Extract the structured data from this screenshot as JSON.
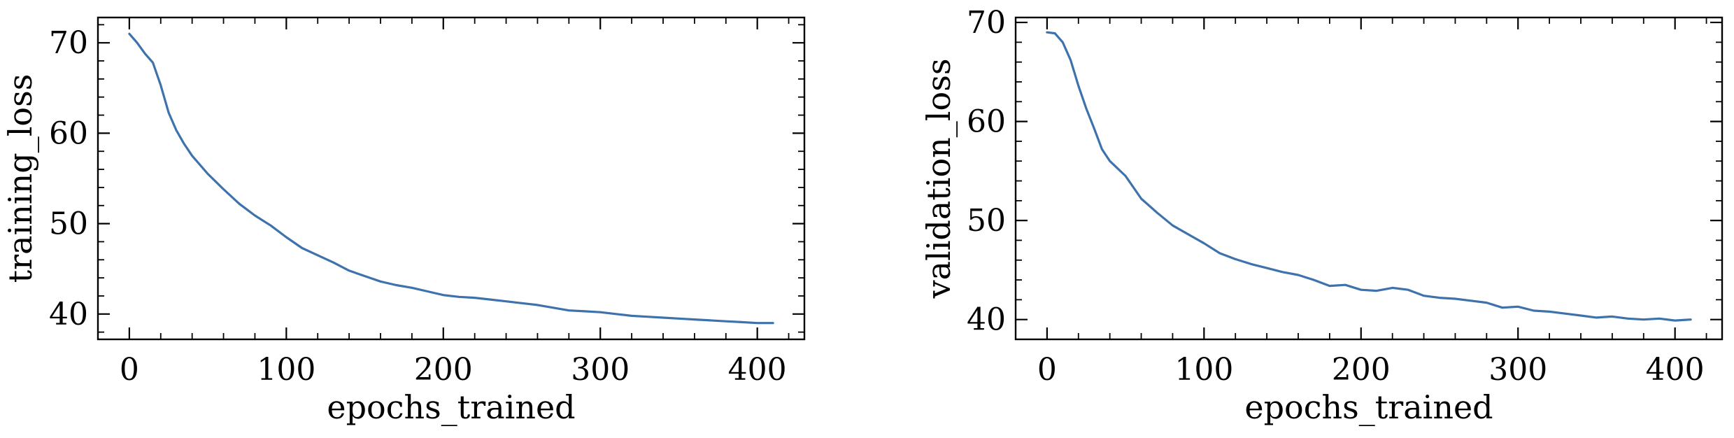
{
  "chart_data": [
    {
      "type": "line",
      "title": "",
      "xlabel": "epochs_trained",
      "ylabel": "training_loss",
      "xlim": [
        -20,
        430
      ],
      "ylim": [
        37.2,
        72.8
      ],
      "xticks": [
        0,
        100,
        200,
        300,
        400
      ],
      "yticks": [
        40,
        50,
        60,
        70
      ],
      "grid": false,
      "line_color": "#3e72ac",
      "series": [
        {
          "x": [
            0,
            5,
            10,
            15,
            20,
            25,
            30,
            35,
            40,
            50,
            60,
            70,
            80,
            90,
            100,
            110,
            120,
            130,
            140,
            150,
            160,
            170,
            180,
            190,
            200,
            210,
            220,
            230,
            240,
            250,
            260,
            270,
            280,
            290,
            300,
            310,
            320,
            330,
            340,
            350,
            360,
            370,
            380,
            390,
            400,
            410
          ],
          "y": [
            71.0,
            70.0,
            68.8,
            67.8,
            65.3,
            62.3,
            60.3,
            58.8,
            57.5,
            55.5,
            53.8,
            52.2,
            50.9,
            49.8,
            48.5,
            47.3,
            46.5,
            45.7,
            44.8,
            44.2,
            43.6,
            43.2,
            42.9,
            42.5,
            42.1,
            41.9,
            41.8,
            41.6,
            41.4,
            41.2,
            41.0,
            40.7,
            40.4,
            40.3,
            40.2,
            40.0,
            39.8,
            39.7,
            39.6,
            39.5,
            39.4,
            39.3,
            39.2,
            39.1,
            39.0,
            39.0
          ]
        }
      ]
    },
    {
      "type": "line",
      "title": "",
      "xlabel": "epochs_trained",
      "ylabel": "validation_loss",
      "xlim": [
        -20,
        430
      ],
      "ylim": [
        38.0,
        70.5
      ],
      "xticks": [
        0,
        100,
        200,
        300,
        400
      ],
      "yticks": [
        40,
        50,
        60,
        70
      ],
      "grid": false,
      "line_color": "#3e72ac",
      "series": [
        {
          "x": [
            0,
            5,
            10,
            15,
            20,
            25,
            30,
            35,
            40,
            50,
            60,
            70,
            80,
            90,
            100,
            110,
            120,
            130,
            140,
            150,
            160,
            170,
            180,
            190,
            200,
            210,
            220,
            230,
            240,
            250,
            260,
            270,
            280,
            290,
            300,
            310,
            320,
            330,
            340,
            350,
            360,
            370,
            380,
            390,
            400,
            410
          ],
          "y": [
            69.0,
            68.9,
            68.0,
            66.2,
            63.6,
            61.3,
            59.3,
            57.2,
            56.0,
            54.5,
            52.2,
            50.8,
            49.5,
            48.6,
            47.7,
            46.7,
            46.1,
            45.6,
            45.2,
            44.8,
            44.5,
            44.0,
            43.4,
            43.5,
            43.0,
            42.9,
            43.2,
            43.0,
            42.4,
            42.2,
            42.1,
            41.9,
            41.7,
            41.2,
            41.3,
            40.9,
            40.8,
            40.6,
            40.4,
            40.2,
            40.3,
            40.1,
            40.0,
            40.1,
            39.9,
            40.0
          ]
        }
      ]
    }
  ]
}
